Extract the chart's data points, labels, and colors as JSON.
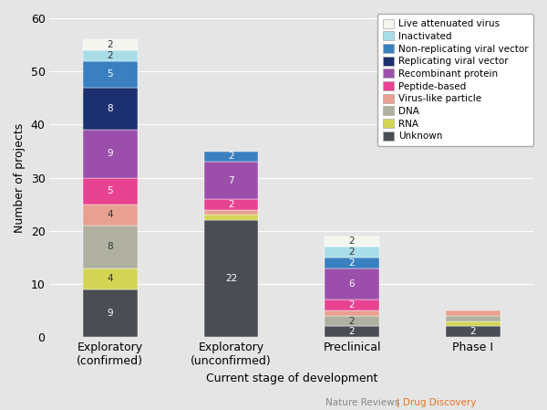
{
  "categories": [
    "Exploratory\n(confirmed)",
    "Exploratory\n(unconfirmed)",
    "Preclinical",
    "Phase I"
  ],
  "xlabel": "Current stage of development",
  "ylabel": "Number of projects",
  "ylim": [
    0,
    60
  ],
  "yticks": [
    0,
    10,
    20,
    30,
    40,
    50,
    60
  ],
  "background_color": "#e5e5e5",
  "legend_labels": [
    "Live attenuated virus",
    "Inactivated",
    "Non-replicating viral vector",
    "Replicating viral vector",
    "Recombinant protein",
    "Peptide-based",
    "Virus-like particle",
    "DNA",
    "RNA",
    "Unknown"
  ],
  "colors": [
    "#f5f5f0",
    "#a8dde8",
    "#3a80c0",
    "#1c2f6e",
    "#9b4faa",
    "#e84393",
    "#e8a090",
    "#b0b0a0",
    "#d4d455",
    "#4a4e54"
  ],
  "stack_order": [
    9,
    8,
    7,
    6,
    5,
    4,
    3,
    2,
    1,
    0
  ],
  "data_by_layer": {
    "0_live": [
      2,
      0,
      2,
      0
    ],
    "1_inact": [
      2,
      0,
      2,
      0
    ],
    "2_nonrep": [
      5,
      2,
      2,
      0
    ],
    "3_rep": [
      8,
      0,
      0,
      0
    ],
    "4_recomb": [
      9,
      7,
      6,
      0
    ],
    "5_pep": [
      5,
      2,
      2,
      0
    ],
    "6_vlp": [
      4,
      1,
      1,
      1
    ],
    "7_dna": [
      8,
      0,
      2,
      1
    ],
    "8_rna": [
      4,
      1,
      0,
      1
    ],
    "9_unk": [
      9,
      22,
      2,
      2
    ]
  },
  "text_colors_light": [
    "#f5f5f0",
    "#a8dde8",
    "#e8a090",
    "#b0b0a0",
    "#d4d455"
  ],
  "footnote_gray": "Nature Reviews",
  "footnote_orange": "| Drug Discovery"
}
